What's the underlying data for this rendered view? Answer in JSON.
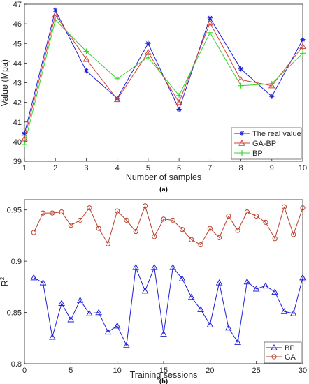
{
  "chart_data": [
    {
      "type": "line",
      "xlabel": "Number of samples",
      "ylabel": "Value (Mpa)",
      "caption": "(a)",
      "xlim": [
        1,
        10
      ],
      "ylim": [
        39,
        47
      ],
      "xticks": [
        1,
        2,
        3,
        4,
        5,
        6,
        7,
        8,
        9,
        10
      ],
      "yticks": [
        39,
        40,
        41,
        42,
        43,
        44,
        45,
        46,
        47
      ],
      "grid": false,
      "legend_position": "bottom-right",
      "x": [
        1,
        2,
        3,
        4,
        5,
        6,
        7,
        8,
        9,
        10
      ],
      "series": [
        {
          "name": "The real value",
          "color": "#1f1fd6",
          "marker": "asterisk",
          "values": [
            40.4,
            46.7,
            43.6,
            42.2,
            45.0,
            41.65,
            46.3,
            43.7,
            42.3,
            45.2
          ]
        },
        {
          "name": "GA-BP",
          "color": "#d0413c",
          "marker": "triangle",
          "values": [
            40.15,
            46.45,
            44.2,
            42.15,
            44.55,
            42.0,
            46.05,
            43.15,
            42.85,
            44.85
          ]
        },
        {
          "name": "BP",
          "color": "#39d42e",
          "marker": "plus",
          "values": [
            39.85,
            46.2,
            44.6,
            43.2,
            44.3,
            42.35,
            45.55,
            42.85,
            42.95,
            44.5
          ]
        }
      ]
    },
    {
      "type": "line",
      "xlabel": "Training sessions",
      "ylabel": "R",
      "ylabel_sup": "2",
      "caption": "(b)",
      "xlim": [
        0,
        30
      ],
      "ylim": [
        0.8,
        0.96
      ],
      "xticks": [
        0,
        5,
        10,
        15,
        20,
        25,
        30
      ],
      "yticks": [
        0.8,
        0.85,
        0.9,
        0.95
      ],
      "ytick_labels": [
        "0.8",
        "0.85",
        "0.9",
        "0.95"
      ],
      "grid": false,
      "legend_position": "bottom-right",
      "x": [
        1,
        2,
        3,
        4,
        5,
        6,
        7,
        8,
        9,
        10,
        11,
        12,
        13,
        14,
        15,
        16,
        17,
        18,
        19,
        20,
        21,
        22,
        23,
        24,
        25,
        26,
        27,
        28,
        29,
        30
      ],
      "series": [
        {
          "name": "BP",
          "color": "#1f1fd6",
          "marker": "triangle",
          "values": [
            0.884,
            0.879,
            0.826,
            0.859,
            0.843,
            0.862,
            0.849,
            0.85,
            0.831,
            0.837,
            0.818,
            0.894,
            0.871,
            0.894,
            0.829,
            0.894,
            0.883,
            0.865,
            0.853,
            0.838,
            0.879,
            0.835,
            0.821,
            0.88,
            0.873,
            0.876,
            0.87,
            0.851,
            0.849,
            0.884
          ]
        },
        {
          "name": "GA",
          "color": "#b8412c",
          "marker": "circle",
          "values": [
            0.928,
            0.947,
            0.947,
            0.948,
            0.935,
            0.94,
            0.952,
            0.932,
            0.917,
            0.949,
            0.94,
            0.929,
            0.954,
            0.924,
            0.941,
            0.94,
            0.931,
            0.921,
            0.916,
            0.932,
            0.923,
            0.944,
            0.93,
            0.948,
            0.944,
            0.938,
            0.922,
            0.953,
            0.926,
            0.952
          ]
        }
      ]
    }
  ]
}
